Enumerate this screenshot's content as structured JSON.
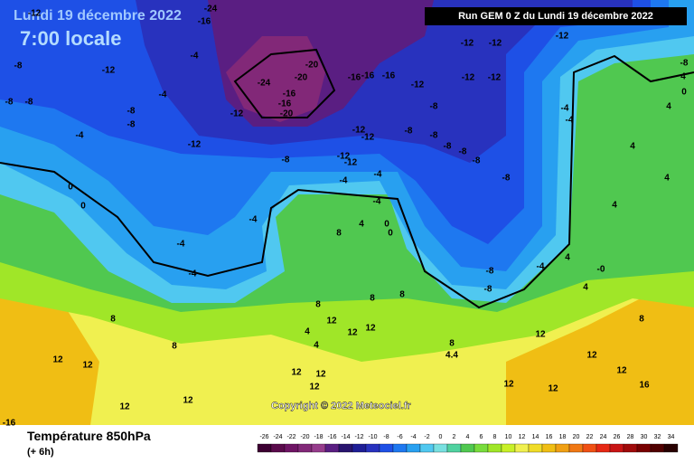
{
  "header": {
    "date": "Lundi 19 décembre 2022",
    "time": "7:00 locale",
    "run": "Run GEM 0 Z du Lundi 19 décembre 2022",
    "copyright": "Copyright © 2022 Meteociel.fr"
  },
  "footer": {
    "title": "Température 850hPa",
    "lead": "(+ 6h)"
  },
  "legend": {
    "ticks": [
      -26,
      -24,
      -22,
      -20,
      -18,
      -16,
      -14,
      -12,
      -10,
      -8,
      -6,
      -4,
      -2,
      0,
      2,
      4,
      6,
      8,
      10,
      12,
      14,
      16,
      18,
      20,
      22,
      24,
      26,
      28,
      30,
      32,
      34
    ],
    "colors": [
      "#3c0032",
      "#5a0a4b",
      "#6e1464",
      "#822878",
      "#963c8c",
      "#5a1e82",
      "#28146e",
      "#1e1e96",
      "#2832be",
      "#1e50e6",
      "#1e78f0",
      "#28a0f0",
      "#50c8f0",
      "#78e0e0",
      "#50d2a0",
      "#50c850",
      "#78dc3c",
      "#a0e628",
      "#c8f028",
      "#f0f050",
      "#f0dc28",
      "#f0be14",
      "#f0a014",
      "#f07814",
      "#f05014",
      "#e62814",
      "#c81414",
      "#a00a0a",
      "#780000",
      "#500000",
      "#280000"
    ]
  },
  "map_labels": [
    "-12",
    "-24",
    "-16",
    "-8",
    "-12",
    "-4",
    "-4",
    "-24",
    "-20",
    "-20",
    "-16",
    "-16",
    "-20",
    "-12",
    "-16",
    "-16",
    "-16",
    "-12",
    "-12",
    "-12",
    "-12",
    "-12",
    "-12",
    "-8",
    "-8",
    "-8",
    "-8",
    "-4",
    "-12",
    "-8",
    "-12",
    "-12",
    "-12",
    "-12",
    "-8",
    "-8",
    "-8",
    "-8",
    "-8",
    "-8",
    "-8",
    "-4",
    "-4",
    "-4",
    "0",
    "0",
    "-4",
    "-4",
    "-4",
    "8",
    "4",
    "0",
    "0",
    "-8",
    "-8",
    "-4",
    "-4",
    "-4",
    "4",
    "4",
    "4",
    "4",
    "4",
    "-0",
    "4",
    "-8",
    "0",
    "4",
    "8",
    "8",
    "8",
    "8",
    "8",
    "12",
    "12",
    "12",
    "4",
    "4",
    "8",
    "4.4",
    "12",
    "12",
    "12",
    "8",
    "12",
    "12",
    "12",
    "12",
    "12",
    "12",
    "12",
    "12",
    "16",
    "12",
    "-16"
  ]
}
